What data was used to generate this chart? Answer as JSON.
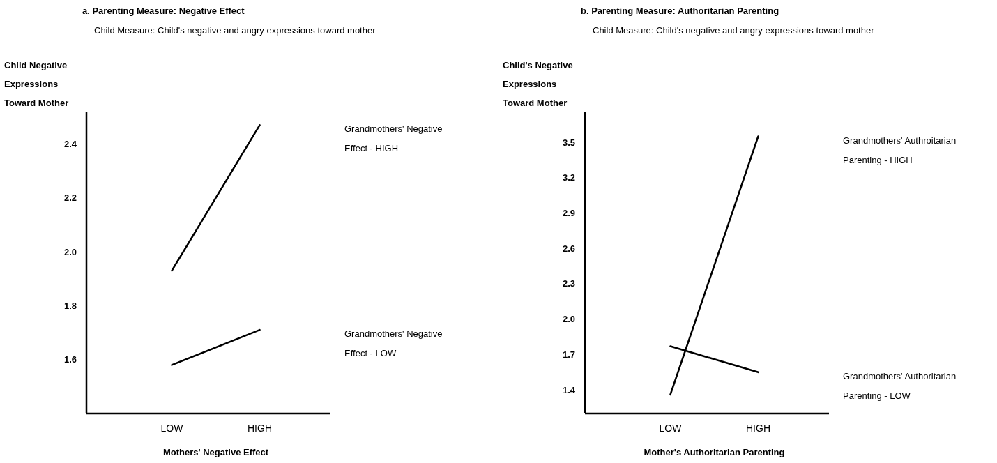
{
  "chart_data": [
    {
      "type": "line",
      "title": "a. Parenting Measure:  Negative Effect",
      "subtitle": "Child Measure:  Child's negative and angry expressions toward mother",
      "xlabel": "Mothers' Negative Effect",
      "ylabel": "Child Negative Expressions Toward Mother",
      "categories": [
        "LOW",
        "HIGH"
      ],
      "ylim": [
        1.4,
        2.52
      ],
      "yticks": [
        1.6,
        1.8,
        {
          "value": 2,
          "label": "2.0"
        },
        2.2,
        2.4
      ],
      "grid": false,
      "series": [
        {
          "name": "Grandmothers' Negative Effect - HIGH",
          "color": "#000000",
          "values": [
            1.93,
            2.47
          ]
        },
        {
          "name": "Grandmothers' Negative Effect - LOW",
          "color": "#000000",
          "values": [
            1.58,
            1.71
          ]
        }
      ]
    },
    {
      "type": "line",
      "title": "b. Parenting Measure:  Authoritarian Parenting",
      "subtitle": "Child Measure:  Child's negative and angry expressions toward mother",
      "xlabel": "Mother's Authoritarian Parenting",
      "ylabel": "Child's Negative Expressions Toward Mother",
      "categories": [
        "LOW",
        "HIGH"
      ],
      "ylim": [
        1.2,
        3.76
      ],
      "yticks": [
        1.4,
        1.7,
        {
          "value": 2,
          "label": "2.0"
        },
        2.3,
        2.6,
        2.9,
        3.2,
        3.5
      ],
      "grid": false,
      "series": [
        {
          "name": "Grandmothers' Authroitarian Parenting - HIGH",
          "color": "#000000",
          "values": [
            1.36,
            3.55
          ]
        },
        {
          "name": "Grandmothers' Authoritarian Parenting - LOW",
          "color": "#000000",
          "values": [
            1.77,
            1.55
          ]
        }
      ]
    }
  ]
}
